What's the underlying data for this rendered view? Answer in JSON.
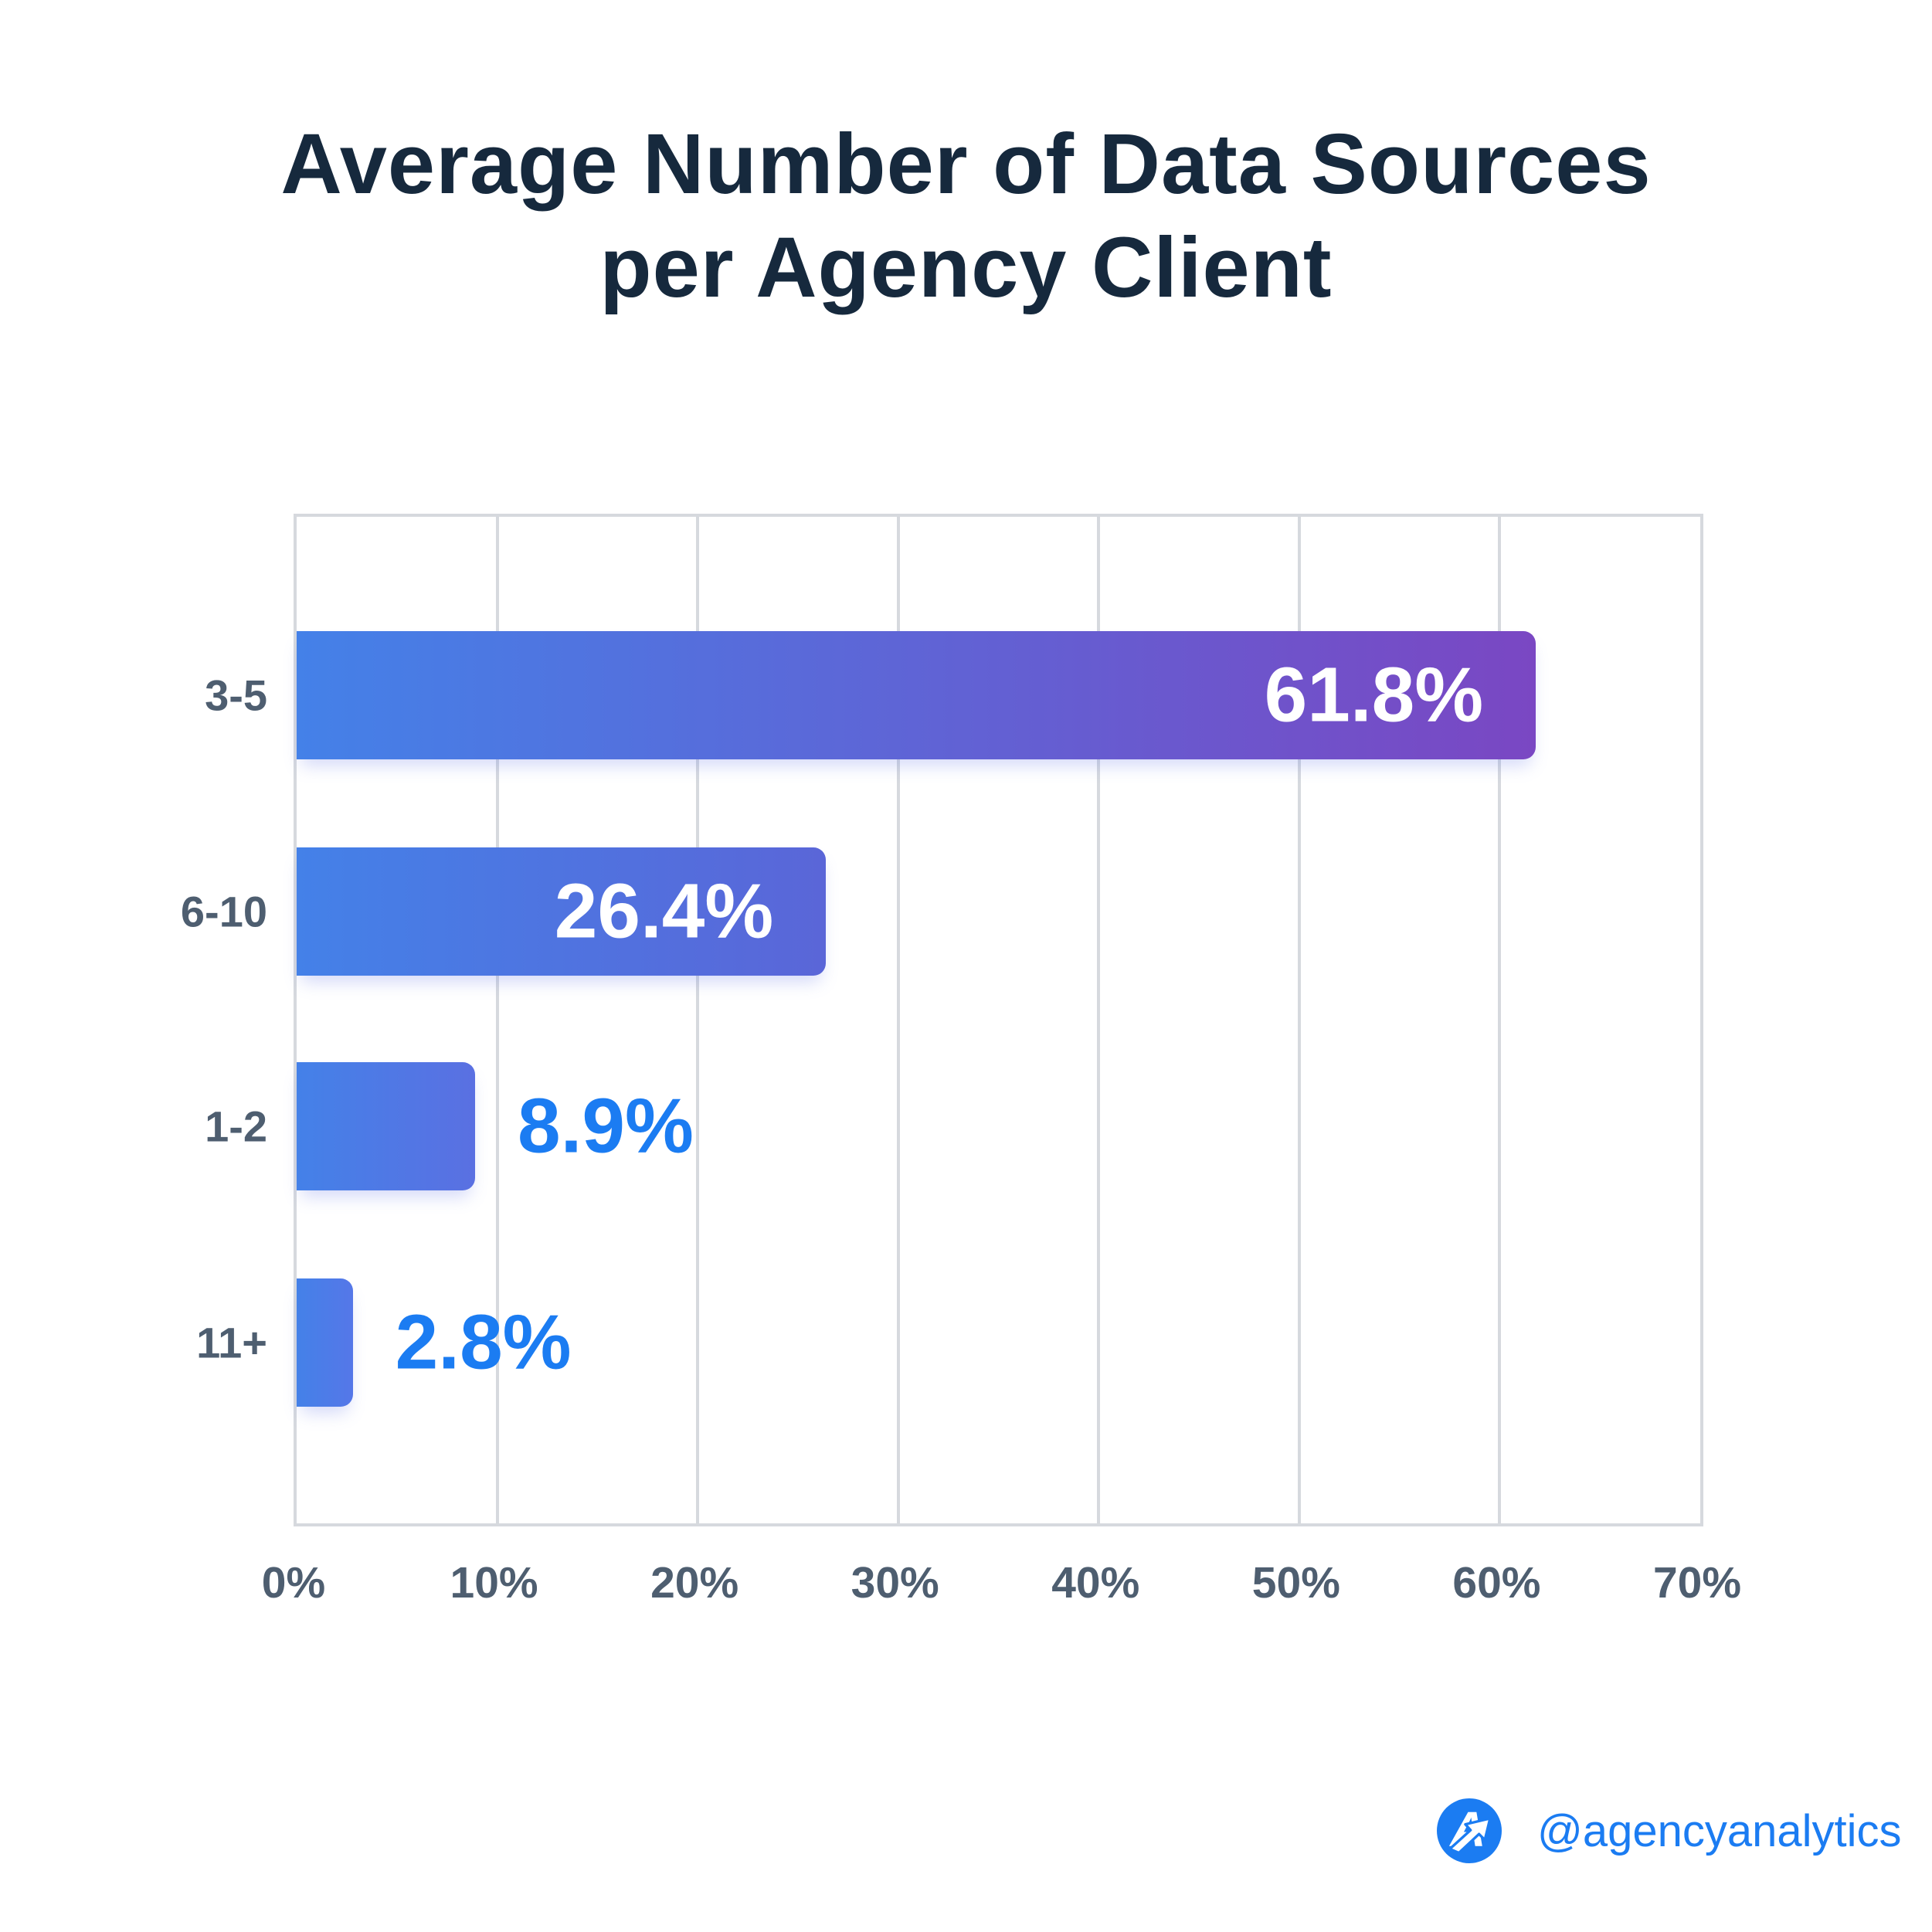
{
  "title": {
    "line1": "Average Number of Data Sources",
    "line2": "per Agency Client"
  },
  "chart_data": {
    "type": "bar",
    "orientation": "horizontal",
    "title": "Average Number of Data Sources per Agency Client",
    "categories": [
      "3-5",
      "6-10",
      "1-2",
      "11+"
    ],
    "values": [
      61.8,
      26.4,
      8.9,
      2.8
    ],
    "value_labels": [
      "61.8%",
      "26.4%",
      "8.9%",
      "2.8%"
    ],
    "label_placement": [
      "inside",
      "inside",
      "outside",
      "outside"
    ],
    "xlabel": "",
    "ylabel": "",
    "xlim": [
      0,
      70
    ],
    "x_ticks": [
      "0%",
      "10%",
      "20%",
      "30%",
      "40%",
      "50%",
      "60%",
      "70%"
    ],
    "x_tick_values": [
      0,
      10,
      20,
      30,
      40,
      50,
      60,
      70
    ],
    "grid": "vertical",
    "legend": "none",
    "bar_gradient_start": "#4481E8",
    "bar_gradient_ends": [
      "#7A47C3",
      "#5A66D8",
      "#5A70E2",
      "#5577E8"
    ],
    "inside_label_color": "#FFFFFF",
    "outside_label_color": "#1B7CF2"
  },
  "footer": {
    "handle": "@agencyanalytics",
    "logo": "agencyanalytics-logo",
    "accent_color": "#1B7CF2"
  },
  "colors": {
    "title_text": "#16293D",
    "axis_label_text": "#4E5E70",
    "gridline": "#D6D9DE",
    "background": "#FFFFFF"
  }
}
